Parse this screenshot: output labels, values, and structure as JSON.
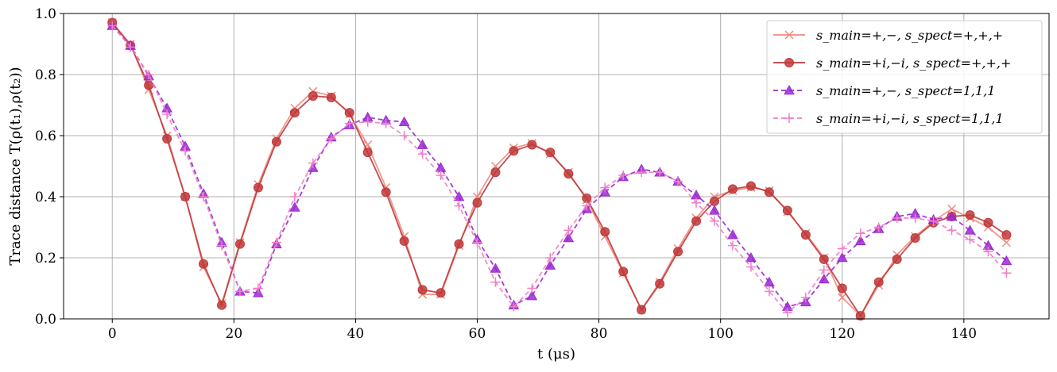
{
  "chart_data": {
    "type": "line",
    "xlabel": "t (μs)",
    "ylabel": "Trace distance T(ρ(t₁),ρ(t₂))",
    "xlim": [
      -8,
      154
    ],
    "ylim": [
      0,
      1
    ],
    "xticks": [
      "0",
      "20",
      "40",
      "60",
      "80",
      "100",
      "120",
      "140"
    ],
    "yticks": [
      "0.0",
      "0.2",
      "0.4",
      "0.6",
      "0.8",
      "1.0"
    ],
    "grid": true,
    "legend_position": "top-right",
    "x": [
      0,
      3,
      6,
      9,
      12,
      15,
      18,
      21,
      24,
      27,
      30,
      33,
      36,
      39,
      42,
      45,
      48,
      51,
      54,
      57,
      60,
      63,
      66,
      69,
      72,
      75,
      78,
      81,
      84,
      87,
      90,
      93,
      96,
      99,
      102,
      105,
      108,
      111,
      114,
      117,
      120,
      123,
      126,
      129,
      132,
      135,
      138,
      141,
      144,
      147
    ],
    "series": [
      {
        "name": "s_main=+,−,  s_spect=+,+,+",
        "color": "#f08c80",
        "marker": "x",
        "linestyle": "solid",
        "values": [
          0.97,
          0.9,
          0.75,
          0.6,
          0.4,
          0.17,
          0.05,
          0.25,
          0.44,
          0.59,
          0.69,
          0.745,
          0.73,
          0.67,
          0.57,
          0.43,
          0.27,
          0.08,
          0.08,
          0.24,
          0.4,
          0.5,
          0.56,
          0.575,
          0.54,
          0.48,
          0.39,
          0.27,
          0.15,
          0.03,
          0.12,
          0.23,
          0.33,
          0.4,
          0.42,
          0.43,
          0.42,
          0.35,
          0.28,
          0.2,
          0.07,
          0.01,
          0.11,
          0.21,
          0.27,
          0.32,
          0.36,
          0.33,
          0.3,
          0.25
        ]
      },
      {
        "name": "s_main=+i,−i,  s_spect=+,+,+",
        "color": "#c0393b",
        "marker": "o",
        "linestyle": "solid",
        "values": [
          0.97,
          0.895,
          0.765,
          0.59,
          0.4,
          0.18,
          0.045,
          0.245,
          0.43,
          0.58,
          0.675,
          0.73,
          0.725,
          0.675,
          0.545,
          0.415,
          0.255,
          0.095,
          0.085,
          0.245,
          0.38,
          0.48,
          0.55,
          0.57,
          0.545,
          0.475,
          0.395,
          0.285,
          0.155,
          0.03,
          0.115,
          0.22,
          0.32,
          0.385,
          0.425,
          0.435,
          0.415,
          0.355,
          0.275,
          0.195,
          0.1,
          0.01,
          0.12,
          0.195,
          0.265,
          0.315,
          0.335,
          0.34,
          0.315,
          0.275
        ]
      },
      {
        "name": "s_main=+,−,  s_spect=1,1,1",
        "color": "#9b28d4",
        "marker": "^",
        "linestyle": "dashed",
        "values": [
          0.96,
          0.895,
          0.795,
          0.69,
          0.565,
          0.41,
          0.25,
          0.09,
          0.085,
          0.245,
          0.365,
          0.495,
          0.595,
          0.635,
          0.66,
          0.65,
          0.645,
          0.57,
          0.495,
          0.4,
          0.26,
          0.165,
          0.045,
          0.075,
          0.175,
          0.265,
          0.36,
          0.415,
          0.465,
          0.49,
          0.48,
          0.45,
          0.405,
          0.355,
          0.275,
          0.2,
          0.12,
          0.04,
          0.055,
          0.13,
          0.2,
          0.255,
          0.295,
          0.335,
          0.345,
          0.325,
          0.335,
          0.29,
          0.24,
          0.19
        ]
      },
      {
        "name": "s_main=+i,−i,  s_spect=1,1,1",
        "color": "#f07ec8",
        "marker": "+",
        "linestyle": "dashed",
        "values": [
          0.96,
          0.89,
          0.8,
          0.67,
          0.55,
          0.4,
          0.24,
          0.09,
          0.1,
          0.25,
          0.4,
          0.51,
          0.59,
          0.64,
          0.645,
          0.64,
          0.6,
          0.54,
          0.47,
          0.37,
          0.25,
          0.12,
          0.04,
          0.1,
          0.2,
          0.29,
          0.37,
          0.43,
          0.47,
          0.48,
          0.48,
          0.45,
          0.38,
          0.32,
          0.24,
          0.17,
          0.09,
          0.02,
          0.07,
          0.16,
          0.23,
          0.28,
          0.3,
          0.33,
          0.33,
          0.32,
          0.29,
          0.26,
          0.22,
          0.15
        ]
      }
    ]
  }
}
